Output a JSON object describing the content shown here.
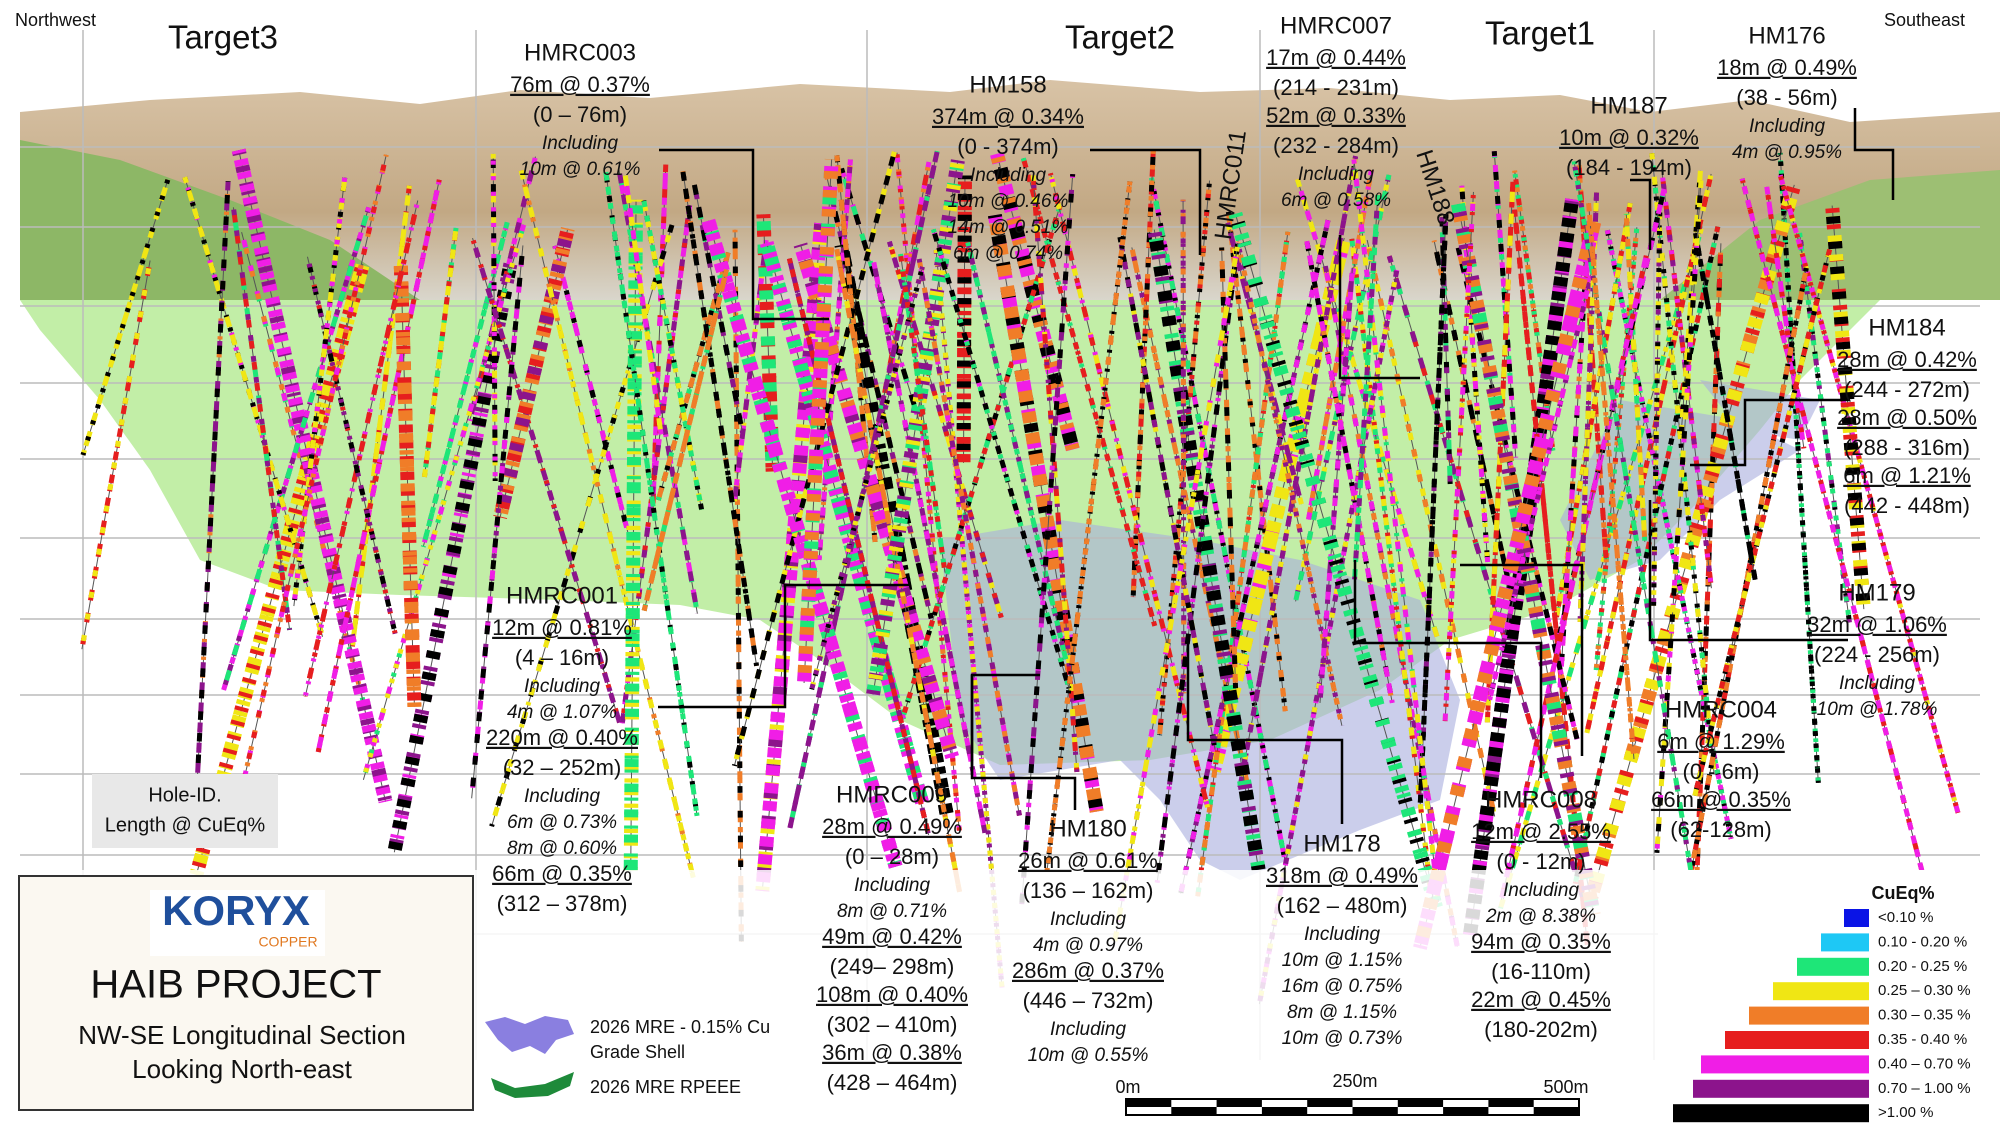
{
  "orientation": {
    "left": "Northwest",
    "right": "Southeast"
  },
  "targets": [
    "Target3",
    "Target2",
    "Target1"
  ],
  "rotated_labels": [
    "HMRC011",
    "HM188"
  ],
  "holes": [
    {
      "id": "HMRC003",
      "intercepts": [
        {
          "grade": "76m @ 0.37%",
          "range": "(0 – 76m)",
          "including": "Including",
          "sub": [
            "10m @ 0.61%"
          ]
        }
      ]
    },
    {
      "id": "HM158",
      "intercepts": [
        {
          "grade": "374m @ 0.34%",
          "range": "(0 - 374m)",
          "including": "Including",
          "sub": [
            "10m @ 0.46%",
            "14m @ 0.51%",
            "6m @ 0.74%"
          ]
        }
      ]
    },
    {
      "id": "HMRC007",
      "intercepts": [
        {
          "grade": "17m @ 0.44%",
          "range": "(214 - 231m)"
        },
        {
          "grade": "52m @ 0.33%",
          "range": "(232 - 284m)",
          "including": "Including",
          "sub": [
            "6m @ 0.58%"
          ]
        }
      ]
    },
    {
      "id": "HM187",
      "intercepts": [
        {
          "grade": "10m @ 0.32%",
          "range": "(184 - 194m)"
        }
      ]
    },
    {
      "id": "HM176",
      "intercepts": [
        {
          "grade": "18m @ 0.49%",
          "range": "(38 - 56m)",
          "including": "Including",
          "sub": [
            "4m @ 0.95%"
          ]
        }
      ]
    },
    {
      "id": "HM184",
      "intercepts": [
        {
          "grade": "28m @ 0.42%",
          "range": "(244 - 272m)"
        },
        {
          "grade": "28m @ 0.50%",
          "range": "(288 - 316m)"
        },
        {
          "grade": "6m @ 1.21%",
          "range": "(442 - 448m)"
        }
      ]
    },
    {
      "id": "HM179",
      "intercepts": [
        {
          "grade": "32m @ 1.06%",
          "range": "(224 - 256m)",
          "including": "Including",
          "sub": [
            "10m @ 1.78%"
          ]
        }
      ]
    },
    {
      "id": "HMRC004",
      "intercepts": [
        {
          "grade": "6m @ 1.29%",
          "range": "(0 - 6m)"
        },
        {
          "grade": "66m @ 0.35%",
          "range": "(62-128m)"
        }
      ]
    },
    {
      "id": "HMRC008",
      "intercepts": [
        {
          "grade": "12m @ 2.55%",
          "range": "(0 - 12m)",
          "including": "Including",
          "sub": [
            "2m @ 8.38%"
          ]
        },
        {
          "grade": "94m @ 0.35%",
          "range": "(16-110m)"
        },
        {
          "grade": "22m @ 0.45%",
          "range": "(180-202m)"
        }
      ]
    },
    {
      "id": "HM178",
      "intercepts": [
        {
          "grade": "318m @ 0.49%",
          "range": "(162 – 480m)",
          "including": "Including",
          "sub": [
            "10m @ 1.15%",
            "16m @ 0.75%",
            "8m @ 1.15%",
            "10m @ 0.73%"
          ]
        }
      ]
    },
    {
      "id": "HM180",
      "intercepts": [
        {
          "grade": "26m @ 0.61%",
          "range": "(136 – 162m)",
          "including": "Including",
          "sub": [
            "4m @ 0.97%"
          ]
        },
        {
          "grade": "286m @ 0.37%",
          "range": "(446 – 732m)",
          "including": "Including",
          "sub": [
            "10m @ 0.55%"
          ]
        }
      ]
    },
    {
      "id": "HMRC009",
      "intercepts": [
        {
          "grade": "28m @ 0.49%",
          "range": "(0 – 28m)",
          "including": "Including",
          "sub": [
            "8m @ 0.71%"
          ]
        },
        {
          "grade": "49m @ 0.42%",
          "range": "(249– 298m)"
        },
        {
          "grade": "108m @ 0.40%",
          "range": "(302 – 410m)"
        },
        {
          "grade": "36m @ 0.38%",
          "range": "(428 – 464m)"
        }
      ]
    },
    {
      "id": "HMRC001",
      "intercepts": [
        {
          "grade": "12m @ 0.81%",
          "range": "(4 – 16m)",
          "including": "Including",
          "sub": [
            "4m @ 1.07%"
          ]
        },
        {
          "grade": "220m @ 0.40%",
          "range": "(32 – 252m)",
          "including": "Including",
          "sub": [
            "6m @ 0.73%",
            "8m @ 0.60%"
          ]
        },
        {
          "grade": "66m @ 0.35%",
          "range": "(312 – 378m)"
        }
      ]
    }
  ],
  "key_box": [
    "Hole-ID.",
    "Length @ CuEq%"
  ],
  "logo": {
    "company": "KORYX",
    "subtitle": "COPPER",
    "project": "HAIB PROJECT",
    "lines": [
      "NW-SE Longitudinal Section",
      "Looking North-east"
    ]
  },
  "shell_legend": {
    "grade_shell": [
      "2026 MRE - 0.15% Cu",
      "Grade Shell"
    ],
    "rpeee": "2026 MRE RPEEE"
  },
  "scale_bar": [
    "0m",
    "250m",
    "500m"
  ],
  "grade_legend": {
    "title": "CuEq%",
    "items": [
      {
        "label": "<0.10 %",
        "color": "#0a14e6"
      },
      {
        "label": "0.10 - 0.20 %",
        "color": "#1ec8f5"
      },
      {
        "label": "0.20 - 0.25 %",
        "color": "#1ee678"
      },
      {
        "label": "0.25 – 0.30 %",
        "color": "#f0e614"
      },
      {
        "label": "0.30 – 0.35 %",
        "color": "#f07d28"
      },
      {
        "label": "0.35 - 0.40 %",
        "color": "#e61e1e"
      },
      {
        "label": "0.40 – 0.70 %",
        "color": "#f01ee6"
      },
      {
        "label": "0.70 – 1.00 %",
        "color": "#8c148c"
      },
      {
        "label": ">1.00 %",
        "color": "#000000"
      }
    ]
  }
}
